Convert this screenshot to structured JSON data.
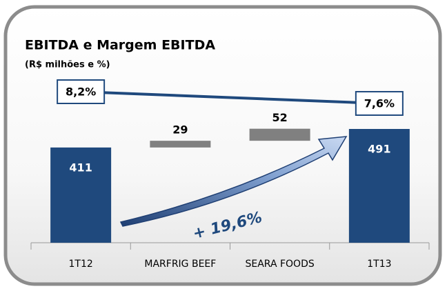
{
  "chart_data": {
    "type": "waterfall",
    "title": "EBITDA e Margem EBITDA",
    "subtitle": "(R$ milhões e %)",
    "categories": [
      "1T12",
      "MARFRIG BEEF",
      "SEARA FOODS",
      "1T13"
    ],
    "values": [
      411,
      29,
      52,
      491
    ],
    "measure": [
      "absolute",
      "relative",
      "relative",
      "total"
    ],
    "total_color": "#1f497d",
    "step_color": "#808080",
    "margin": {
      "values": [
        8.2,
        7.6
      ],
      "value_labels": [
        "8,2%",
        "7,6%"
      ],
      "color": "#1f497d"
    },
    "annotation": "+ 19,6%"
  }
}
